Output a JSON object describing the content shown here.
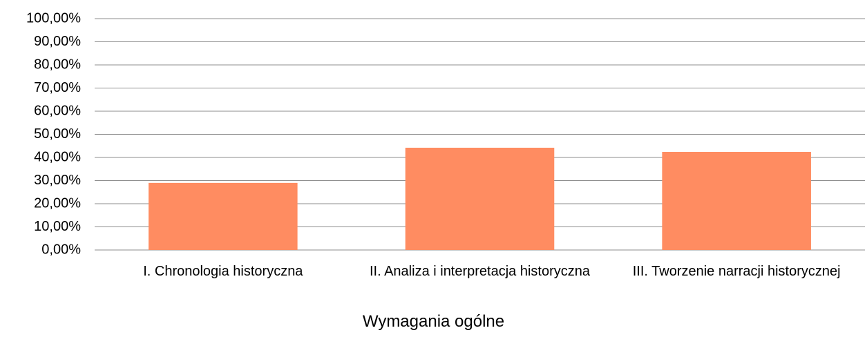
{
  "chart_data": {
    "type": "bar",
    "x_label": "Wymagania ogólne",
    "categories": [
      "I. Chronologia historyczna",
      "II. Analiza i interpretacja historyczna",
      "III. Tworzenie narracji historycznej"
    ],
    "values": [
      29.0,
      44.2,
      42.4
    ],
    "color": "#ff8c61",
    "ylim": [
      0,
      100
    ],
    "yticks": [
      {
        "value": 0,
        "label": "0,00%"
      },
      {
        "value": 10,
        "label": "10,00%"
      },
      {
        "value": 20,
        "label": "20,00%"
      },
      {
        "value": 30,
        "label": "30,00%"
      },
      {
        "value": 40,
        "label": "40,00%"
      },
      {
        "value": 50,
        "label": "50,00%"
      },
      {
        "value": 60,
        "label": "60,00%"
      },
      {
        "value": 70,
        "label": "70,00%"
      },
      {
        "value": 80,
        "label": "80,00%"
      },
      {
        "value": 90,
        "label": "90,00%"
      },
      {
        "value": 100,
        "label": "100,00%"
      }
    ],
    "grid": true
  }
}
